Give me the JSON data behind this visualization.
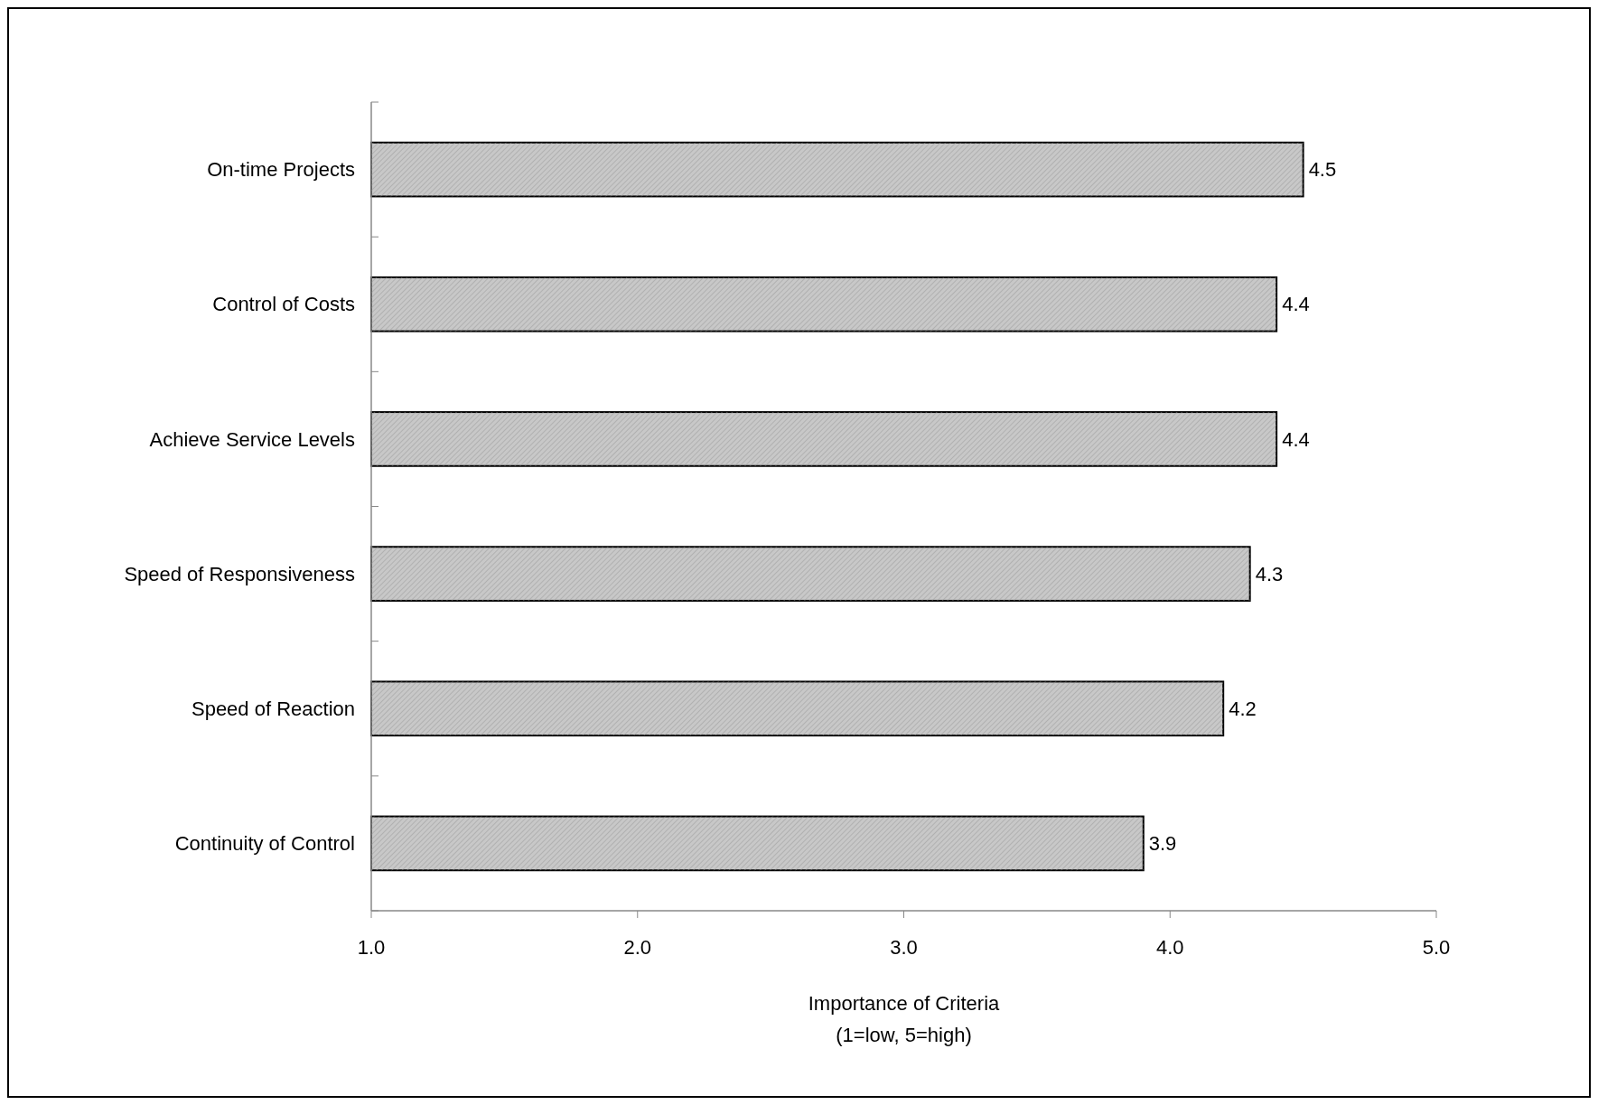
{
  "chart_data": {
    "type": "bar",
    "orientation": "horizontal",
    "categories": [
      "On-time Projects",
      "Control of Costs",
      "Achieve Service Levels",
      "Speed of Responsiveness",
      "Speed of Reaction",
      "Continuity of Control"
    ],
    "values": [
      4.5,
      4.4,
      4.4,
      4.3,
      4.2,
      3.9
    ],
    "color": "#c8c8c8",
    "data_labels": true,
    "xlim": [
      1,
      5
    ],
    "xticks": [
      {
        "value": 1,
        "label": "1.0"
      },
      {
        "value": 2,
        "label": "2.0"
      },
      {
        "value": 3,
        "label": "3.0"
      },
      {
        "value": 4,
        "label": "4.0"
      },
      {
        "value": 5,
        "label": "5.0"
      }
    ],
    "xlabel": "Importance of Criteria\n(1=low, 5=high)"
  }
}
